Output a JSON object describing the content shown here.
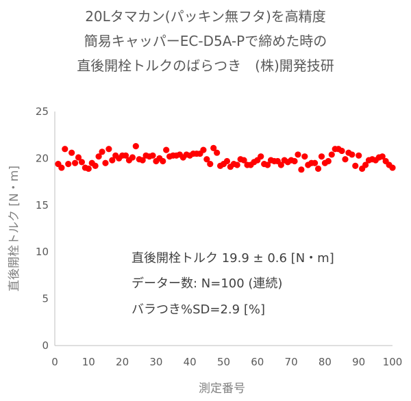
{
  "chart_data": {
    "type": "scatter",
    "title_lines": [
      "20Lタマカン(パッキン無フタ)を高精度",
      "簡易キャッパーEC-D5A-Pで締めた時の",
      "直後開栓トルクのばらつき　(株)開発技研"
    ],
    "xlabel": "測定番号",
    "ylabel": "直後開栓トルク [N・m]",
    "xlim": [
      0,
      100
    ],
    "ylim": [
      0,
      25
    ],
    "x_ticks": [
      0,
      10,
      20,
      30,
      40,
      50,
      60,
      70,
      80,
      90,
      100
    ],
    "y_ticks": [
      0,
      5,
      10,
      15,
      20,
      25
    ],
    "grid": false,
    "marker_color": "#ff0000",
    "annotations": [
      "直後開栓トルク 19.9 ± 0.6 [N・m]",
      "データー数: N=100 (連続)",
      "バラつき%SD=2.9 [%]"
    ],
    "x": [
      1,
      2,
      3,
      4,
      5,
      6,
      7,
      8,
      9,
      10,
      11,
      12,
      13,
      14,
      15,
      16,
      17,
      18,
      19,
      20,
      21,
      22,
      23,
      24,
      25,
      26,
      27,
      28,
      29,
      30,
      31,
      32,
      33,
      34,
      35,
      36,
      37,
      38,
      39,
      40,
      41,
      42,
      43,
      44,
      45,
      46,
      47,
      48,
      49,
      50,
      51,
      52,
      53,
      54,
      55,
      56,
      57,
      58,
      59,
      60,
      61,
      62,
      63,
      64,
      65,
      66,
      67,
      68,
      69,
      70,
      71,
      72,
      73,
      74,
      75,
      76,
      77,
      78,
      79,
      80,
      81,
      82,
      83,
      84,
      85,
      86,
      87,
      88,
      89,
      90,
      91,
      92,
      93,
      94,
      95,
      96,
      97,
      98,
      99,
      100
    ],
    "y": [
      19.4,
      19.0,
      21.0,
      19.4,
      20.6,
      19.5,
      20.1,
      19.6,
      19.0,
      18.9,
      19.5,
      19.2,
      20.2,
      20.7,
      19.5,
      21.0,
      19.8,
      20.3,
      20.0,
      20.3,
      20.3,
      19.8,
      20.1,
      21.3,
      19.9,
      19.8,
      20.3,
      20.2,
      20.3,
      19.7,
      20.0,
      19.7,
      20.9,
      20.2,
      20.3,
      20.3,
      20.4,
      20.1,
      20.4,
      20.3,
      20.5,
      20.5,
      20.5,
      20.9,
      19.9,
      19.4,
      21.1,
      20.6,
      19.2,
      19.4,
      19.7,
      19.1,
      19.4,
      19.3,
      19.9,
      19.8,
      19.3,
      19.3,
      19.6,
      19.8,
      20.2,
      19.4,
      19.3,
      19.8,
      19.7,
      19.7,
      19.3,
      19.8,
      19.6,
      19.8,
      19.7,
      20.4,
      18.8,
      20.2,
      19.3,
      19.5,
      19.5,
      18.9,
      20.2,
      19.5,
      19.7,
      20.4,
      21.0,
      21.0,
      20.8,
      19.9,
      20.6,
      20.4,
      19.2,
      20.3,
      18.9,
      19.3,
      19.8,
      19.9,
      19.8,
      20.1,
      20.2,
      19.7,
      19.3,
      19.0
    ]
  }
}
